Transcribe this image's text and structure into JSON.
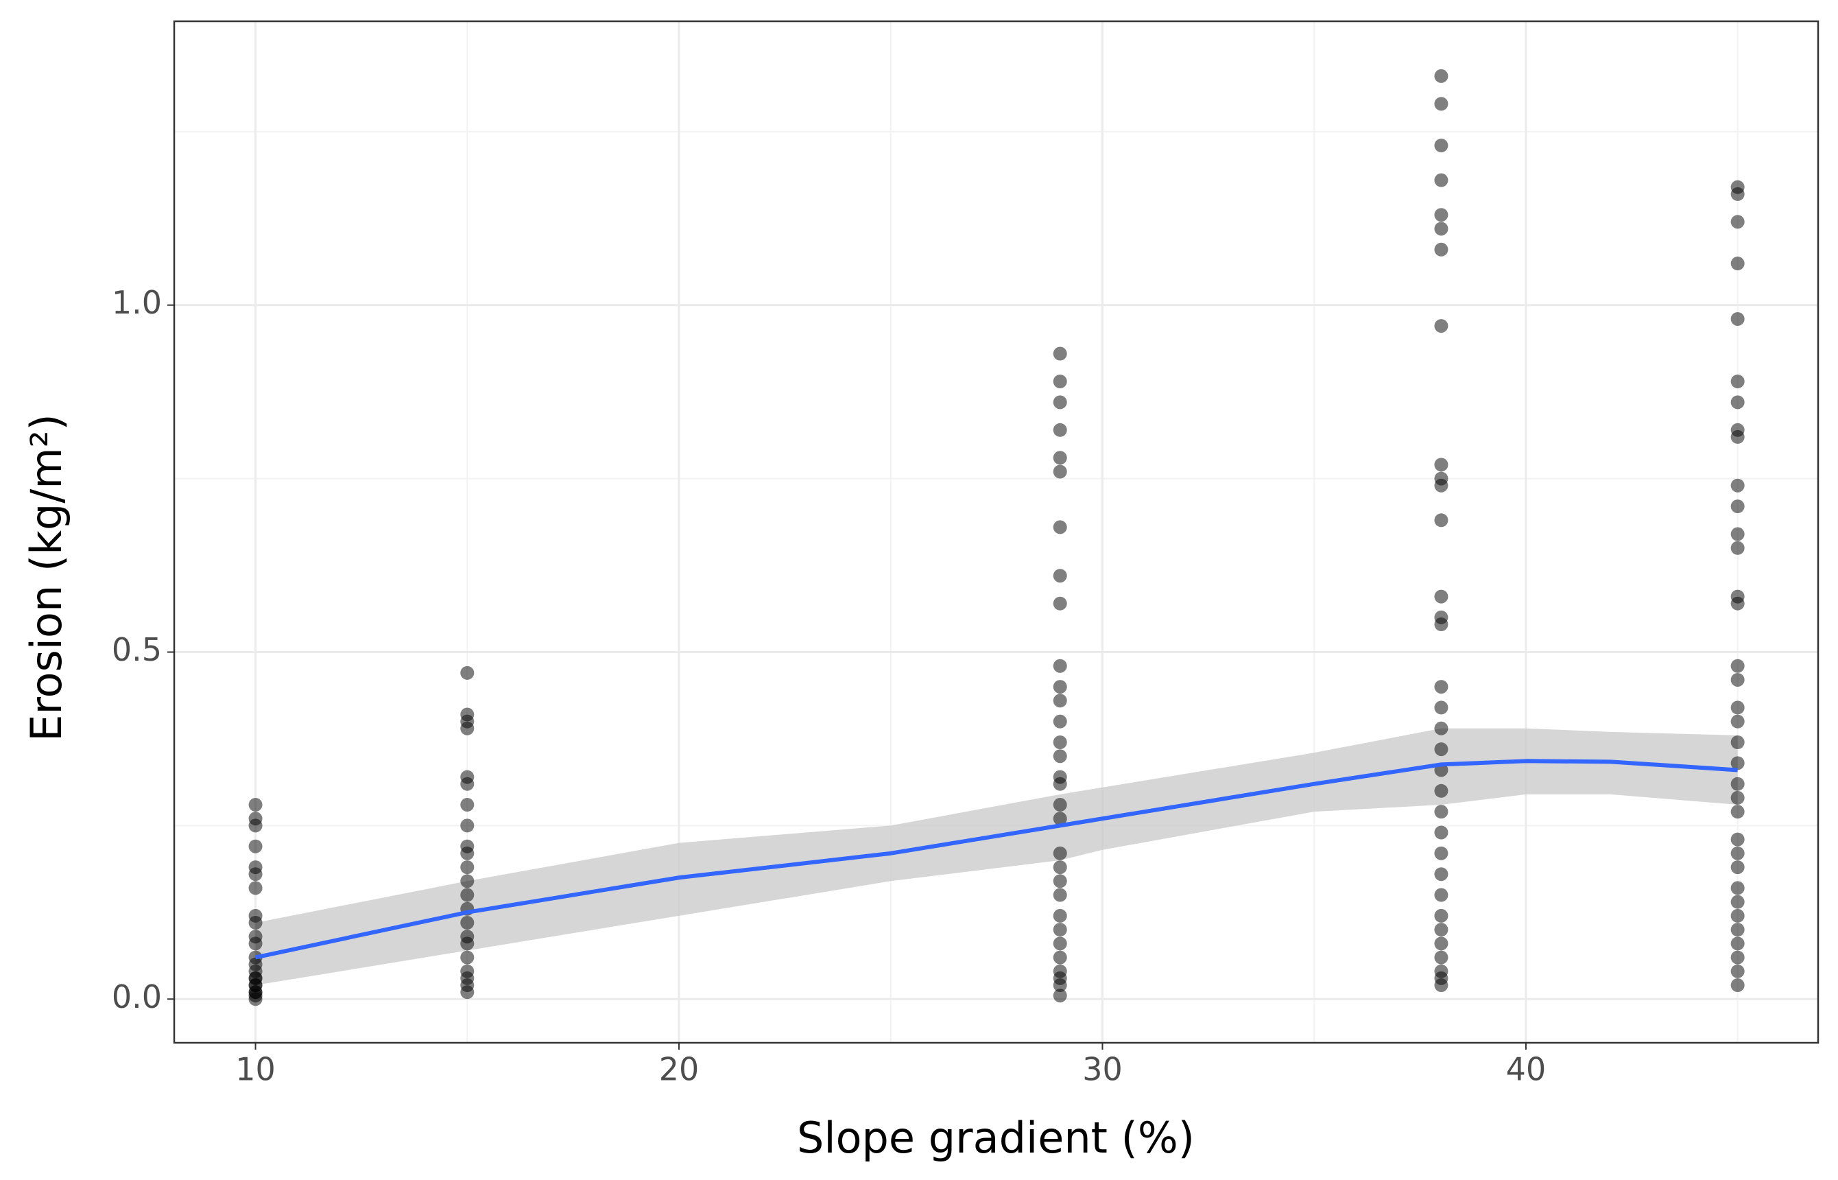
{
  "chart_data": {
    "type": "scatter",
    "x_label": "Slope gradient (%)",
    "y_label": "Erosion (kg/m²)",
    "xlim": [
      8.08,
      46.9
    ],
    "ylim": [
      -0.063,
      1.409
    ],
    "xticks": [
      10,
      20,
      30,
      40
    ],
    "yticks": [
      {
        "value": 0,
        "label": "0.0"
      },
      {
        "value": 0.5,
        "label": "0.5"
      },
      {
        "value": 1,
        "label": "1.0"
      }
    ],
    "xminor": [
      15,
      25,
      35,
      45
    ],
    "yminor": [
      0.25,
      0.75,
      1.25
    ],
    "grid": true,
    "color": "#000000",
    "x": [
      10,
      10,
      10,
      10,
      10,
      10,
      10,
      10,
      10,
      10,
      10,
      10,
      10,
      10,
      10,
      10,
      10,
      10,
      10,
      10,
      10,
      10,
      15,
      15,
      15,
      15,
      15,
      15,
      15,
      15,
      15,
      15,
      15,
      15,
      15,
      15,
      15,
      15,
      15,
      15,
      15,
      15,
      15,
      15,
      29,
      29,
      29,
      29,
      29,
      29,
      29,
      29,
      29,
      29,
      29,
      29,
      29,
      29,
      29,
      29,
      29,
      29,
      29,
      29,
      29,
      29,
      29,
      29,
      29,
      29,
      29,
      29,
      29,
      29,
      29,
      38,
      38,
      38,
      38,
      38,
      38,
      38,
      38,
      38,
      38,
      38,
      38,
      38,
      38,
      38,
      38,
      38,
      38,
      38,
      38,
      38,
      38,
      38,
      38,
      38,
      38,
      38,
      38,
      38,
      38,
      38,
      38,
      38,
      45,
      45,
      45,
      45,
      45,
      45,
      45,
      45,
      45,
      45,
      45,
      45,
      45,
      45,
      45,
      45,
      45,
      45,
      45,
      45,
      45,
      45,
      45,
      45,
      45,
      45,
      45,
      45,
      45,
      45,
      45,
      45,
      45,
      45,
      45
    ],
    "values": [
      0.28,
      0.26,
      0.25,
      0.22,
      0.19,
      0.18,
      0.16,
      0.12,
      0.11,
      0.09,
      0.08,
      0.06,
      0.05,
      0.04,
      0.03,
      0.03,
      0.02,
      0.02,
      0.01,
      0.01,
      0.005,
      0.0,
      0.47,
      0.41,
      0.4,
      0.39,
      0.32,
      0.31,
      0.28,
      0.25,
      0.22,
      0.21,
      0.19,
      0.17,
      0.15,
      0.13,
      0.11,
      0.09,
      0.08,
      0.06,
      0.04,
      0.03,
      0.02,
      0.01,
      0.93,
      0.89,
      0.86,
      0.82,
      0.78,
      0.76,
      0.68,
      0.61,
      0.57,
      0.48,
      0.45,
      0.43,
      0.4,
      0.37,
      0.35,
      0.32,
      0.31,
      0.28,
      0.26,
      0.21,
      0.19,
      0.17,
      0.15,
      0.12,
      0.1,
      0.08,
      0.06,
      0.04,
      0.03,
      0.02,
      0.005,
      1.33,
      1.29,
      1.23,
      1.18,
      1.13,
      1.11,
      1.08,
      0.97,
      0.77,
      0.75,
      0.74,
      0.69,
      0.58,
      0.55,
      0.54,
      0.45,
      0.42,
      0.39,
      0.36,
      0.33,
      0.3,
      0.27,
      0.24,
      0.21,
      0.18,
      0.15,
      0.12,
      0.1,
      0.08,
      0.06,
      0.04,
      0.03,
      0.02,
      1.17,
      1.16,
      1.12,
      1.06,
      0.98,
      0.89,
      0.86,
      0.82,
      0.81,
      0.74,
      0.71,
      0.67,
      0.65,
      0.58,
      0.57,
      0.48,
      0.46,
      0.42,
      0.4,
      0.37,
      0.34,
      0.31,
      0.29,
      0.27,
      0.23,
      0.21,
      0.19,
      0.16,
      0.14,
      0.12,
      0.1,
      0.08,
      0.06,
      0.04,
      0.02
    ],
    "smooth": {
      "color": "#3366ff",
      "band_color": "#c8c8c8",
      "x": [
        10,
        15,
        20,
        25,
        29,
        30,
        35,
        38,
        40,
        42,
        45
      ],
      "values": [
        0.06,
        0.125,
        0.175,
        0.21,
        0.25,
        0.26,
        0.31,
        0.338,
        0.343,
        0.342,
        0.33
      ],
      "lower": [
        0.02,
        0.07,
        0.12,
        0.17,
        0.2,
        0.215,
        0.27,
        0.28,
        0.295,
        0.295,
        0.28
      ],
      "upper": [
        0.11,
        0.17,
        0.225,
        0.25,
        0.295,
        0.305,
        0.355,
        0.39,
        0.39,
        0.385,
        0.38
      ]
    }
  }
}
